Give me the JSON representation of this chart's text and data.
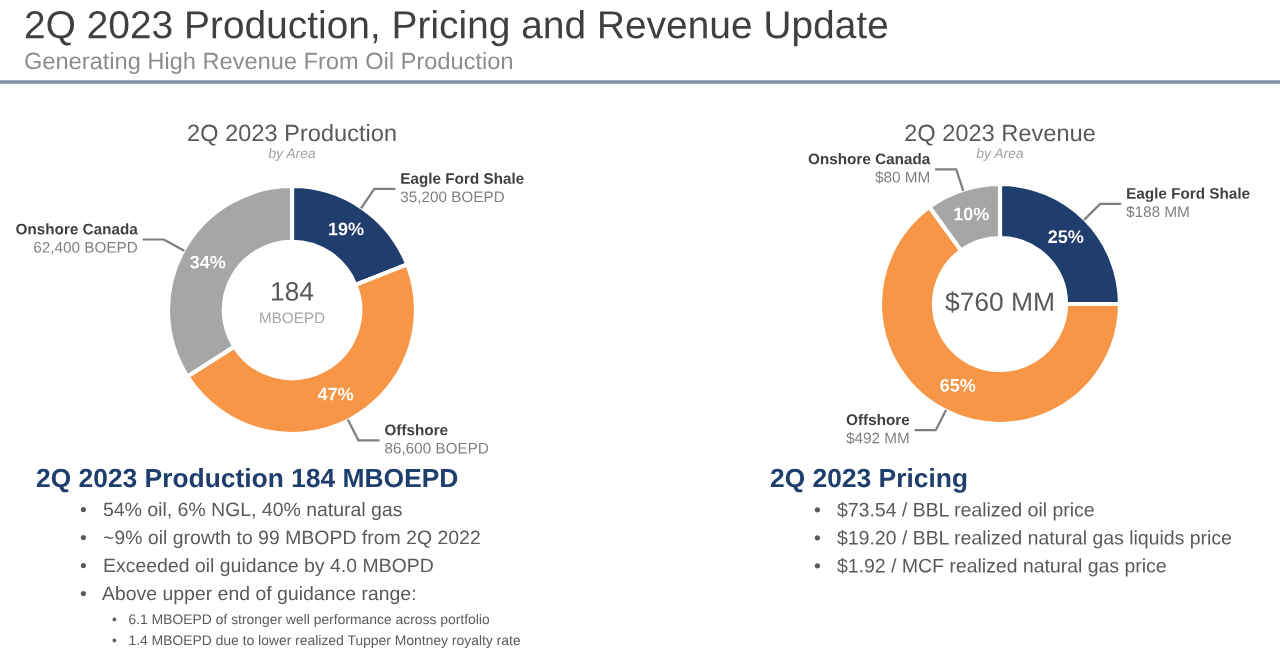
{
  "chart_data": [
    {
      "type": "other",
      "title": "2Q 2023 Production, Pricing and Revenue Update",
      "subtitle": "Generating High Revenue From Oil Production"
    },
    {
      "type": "donut",
      "title": "2Q 2023 Production",
      "subtitle": "by Area",
      "categories": [
        "Eagle Ford Shale",
        "Offshore",
        "Onshore Canada"
      ],
      "values": [
        19,
        47,
        34
      ],
      "value_labels": [
        "19%",
        "47%",
        "34%"
      ],
      "colors": [
        "#1f3e6e",
        "#f79646",
        "#a6a6a6"
      ],
      "annotations": [
        "184",
        "MBOEPD",
        "35,200 BOEPD",
        "86,600 BOEPD",
        "62,400 BOEPD"
      ]
    },
    {
      "type": "donut",
      "title": "2Q 2023 Revenue",
      "subtitle": "by Area",
      "categories": [
        "Eagle Ford Shale",
        "Offshore",
        "Onshore Canada"
      ],
      "values": [
        25,
        65,
        10
      ],
      "value_labels": [
        "25%",
        "65%",
        "10%"
      ],
      "colors": [
        "#1f3e6e",
        "#f79646",
        "#a6a6a6"
      ],
      "annotations": [
        "$760 MM",
        "$188 MM",
        "$492 MM",
        "$80 MM"
      ]
    },
    {
      "type": "other",
      "title": "2Q 2023 Production 184 MBOEPD",
      "annotations": [
        "•   54% oil, 6% NGL, 40% natural gas",
        "•   ~9% oil growth to 99 MBOPD from 2Q 2022",
        "•   Exceeded oil guidance by 4.0 MBOPD",
        "•   Above upper end of guidance range:",
        "•   6.1 MBOEPD of stronger well performance across portfolio",
        "•   1.4 MBOEPD due to lower realized Tupper Montney royalty rate"
      ]
    },
    {
      "type": "other",
      "title": "2Q 2023 Pricing",
      "annotations": [
        "•   $73.54 / BBL realized oil price",
        "•   $19.20 / BBL realized natural gas liquids price",
        "•   $1.92 / MCF realized natural gas price"
      ]
    }
  ]
}
